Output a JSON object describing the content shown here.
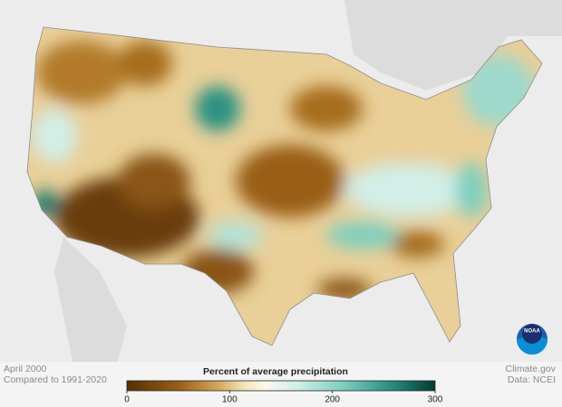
{
  "caption": {
    "date": "April 2000",
    "baseline": "Compared to 1991-2020"
  },
  "legend": {
    "title": "Percent of average precipitation",
    "range": [
      0,
      300
    ],
    "ticks": [
      0,
      100,
      200,
      300
    ]
  },
  "credit": {
    "source": "Climate.gov",
    "data": "Data: NCEI"
  },
  "logo": "NOAA"
}
